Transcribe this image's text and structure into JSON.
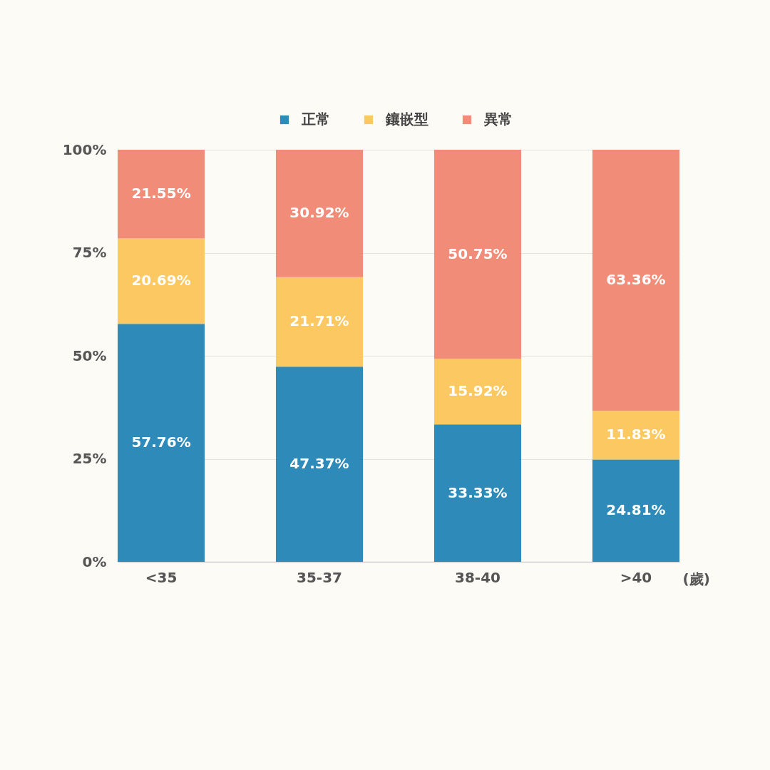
{
  "chart_data": {
    "type": "bar",
    "stacked": true,
    "categories": [
      "<35",
      "35-37",
      "38-40",
      ">40"
    ],
    "xlabel": "(歲)",
    "ylim": [
      0,
      100
    ],
    "yticks": [
      {
        "value": 0,
        "label": "0%"
      },
      {
        "value": 25,
        "label": "25%"
      },
      {
        "value": 50,
        "label": "50%"
      },
      {
        "value": 75,
        "label": "75%"
      },
      {
        "value": 100,
        "label": "100%"
      }
    ],
    "grid": "y",
    "legend": "top",
    "series": [
      {
        "name": "正常",
        "color": "#2e8bb9",
        "values": [
          57.76,
          47.37,
          33.33,
          24.81
        ],
        "value_labels": [
          "57.76%",
          "47.37%",
          "33.33%",
          "24.81%"
        ]
      },
      {
        "name": "鑲嵌型",
        "color": "#fcc862",
        "values": [
          20.69,
          21.71,
          15.92,
          11.83
        ],
        "value_labels": [
          "20.69%",
          "21.71%",
          "15.92%",
          "11.83%"
        ]
      },
      {
        "name": "異常",
        "color": "#f08c78",
        "values": [
          21.55,
          30.92,
          50.75,
          63.36
        ],
        "value_labels": [
          "21.55%",
          "30.92%",
          "50.75%",
          "63.36%"
        ]
      }
    ]
  }
}
